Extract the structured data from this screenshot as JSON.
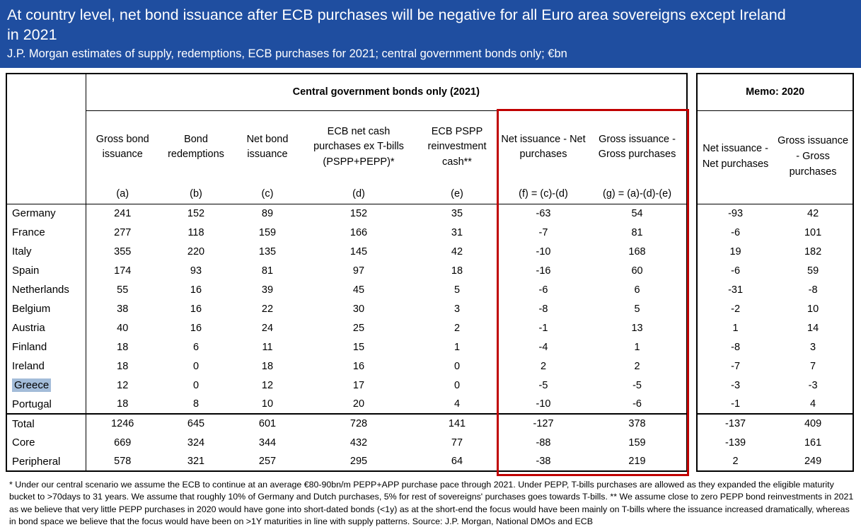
{
  "banner": {
    "title": "At country level, net bond issuance after ECB purchases will be negative for all Euro area sovereigns except Ireland in 2021",
    "subtitle": "J.P. Morgan estimates of supply, redemptions, ECB purchases for 2021; central government bonds only; €bn"
  },
  "style": {
    "banner_bg": "#1F4EA0",
    "banner_text": "#FFFFFF",
    "red_box": "#C00000",
    "greece_highlight": "#A3BCD9",
    "border_color": "#000000"
  },
  "chart_data": {
    "type": "table",
    "title": "Central government bonds only (2021)",
    "memo_title": "Memo: 2020",
    "columns": [
      {
        "key": "a",
        "label": "Gross bond issuance",
        "letter": "(a)"
      },
      {
        "key": "b",
        "label": "Bond redemptions",
        "letter": "(b)"
      },
      {
        "key": "c",
        "label": "Net bond issuance",
        "letter": "(c)"
      },
      {
        "key": "d",
        "label": "ECB net cash purchases ex T-bills (PSPP+PEPP)*",
        "letter": "(d)"
      },
      {
        "key": "e",
        "label": "ECB PSPP reinvestment cash**",
        "letter": "(e)"
      },
      {
        "key": "f",
        "label": "Net issuance - Net purchases",
        "letter": "(f) = (c)-(d)"
      },
      {
        "key": "g",
        "label": "Gross issuance - Gross purchases",
        "letter": "(g) = (a)-(d)-(e)"
      }
    ],
    "memo_columns": [
      {
        "label": "Net issuance - Net purchases"
      },
      {
        "label": "Gross issuance - Gross purchases"
      }
    ],
    "rows": [
      {
        "name": "Germany",
        "values": [
          241,
          152,
          89,
          152,
          35,
          -63,
          54
        ],
        "memo": [
          -93,
          42
        ]
      },
      {
        "name": "France",
        "values": [
          277,
          118,
          159,
          166,
          31,
          -7,
          81
        ],
        "memo": [
          -6,
          101
        ]
      },
      {
        "name": "Italy",
        "values": [
          355,
          220,
          135,
          145,
          42,
          -10,
          168
        ],
        "memo": [
          19,
          182
        ]
      },
      {
        "name": "Spain",
        "values": [
          174,
          93,
          81,
          97,
          18,
          -16,
          60
        ],
        "memo": [
          -6,
          59
        ]
      },
      {
        "name": "Netherlands",
        "values": [
          55,
          16,
          39,
          45,
          5,
          -6,
          6
        ],
        "memo": [
          -31,
          -8
        ]
      },
      {
        "name": "Belgium",
        "values": [
          38,
          16,
          22,
          30,
          3,
          -8,
          5
        ],
        "memo": [
          -2,
          10
        ]
      },
      {
        "name": "Austria",
        "values": [
          40,
          16,
          24,
          25,
          2,
          -1,
          13
        ],
        "memo": [
          1,
          14
        ]
      },
      {
        "name": "Finland",
        "values": [
          18,
          6,
          11,
          15,
          1,
          -4,
          1
        ],
        "memo": [
          -8,
          3
        ]
      },
      {
        "name": "Ireland",
        "values": [
          18,
          0,
          18,
          16,
          0,
          2,
          2
        ],
        "memo": [
          -7,
          7
        ]
      },
      {
        "name": "Greece",
        "highlighted": true,
        "values": [
          12,
          0,
          12,
          17,
          0,
          -5,
          -5
        ],
        "memo": [
          -3,
          -3
        ]
      },
      {
        "name": "Portugal",
        "values": [
          18,
          8,
          10,
          20,
          4,
          -10,
          -6
        ],
        "memo": [
          -1,
          4
        ]
      }
    ],
    "summary_rows": [
      {
        "name": "Total",
        "values": [
          1246,
          645,
          601,
          728,
          141,
          -127,
          378
        ],
        "memo": [
          -137,
          409
        ]
      },
      {
        "name": "Core",
        "values": [
          669,
          324,
          344,
          432,
          77,
          -88,
          159
        ],
        "memo": [
          -139,
          161
        ]
      },
      {
        "name": "Peripheral",
        "values": [
          578,
          321,
          257,
          295,
          64,
          -38,
          219
        ],
        "memo": [
          2,
          249
        ]
      }
    ]
  },
  "footnote": "* Under our central scenario we assume the ECB to continue at an average €80-90bn/m PEPP+APP purchase pace through 2021. Under PEPP, T-bills purchases are allowed as they expanded the eligible maturity bucket to >70days to 31 years. We assume that roughly 10% of Germany and Dutch purchases, 5% for rest of sovereigns' purchases goes towards T-bills.  ** We assume close to zero PEPP bond reinvestments in 2021 as we believe that very little PEPP purchases in 2020 would have gone into short-dated bonds (<1y) as at the short-end the focus would have been mainly on T-bills where the issuance increased dramatically, whereas in bond space we believe that the focus would have been on >1Y maturities in line with supply patterns. Source: J.P. Morgan, National DMOs and ECB"
}
